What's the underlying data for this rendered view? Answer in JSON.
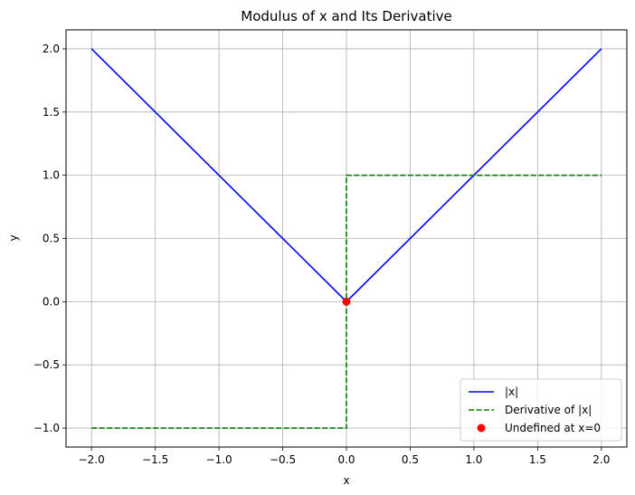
{
  "chart_data": {
    "type": "line",
    "title": "Modulus of x and Its Derivative",
    "xlabel": "x",
    "ylabel": "y",
    "xlim": [
      -2.2,
      2.2
    ],
    "ylim": [
      -1.15,
      2.15
    ],
    "x_ticks": [
      -2.0,
      -1.5,
      -1.0,
      -0.5,
      0.0,
      0.5,
      1.0,
      1.5,
      2.0
    ],
    "x_tick_labels": [
      "−2.0",
      "−1.5",
      "−1.0",
      "−0.5",
      "0.0",
      "0.5",
      "1.0",
      "1.5",
      "2.0"
    ],
    "y_ticks": [
      -1.0,
      -0.5,
      0.0,
      0.5,
      1.0,
      1.5,
      2.0
    ],
    "y_tick_labels": [
      "−1.0",
      "−0.5",
      "0.0",
      "0.5",
      "1.0",
      "1.5",
      "2.0"
    ],
    "grid": true,
    "legend_position": "lower-right",
    "series": [
      {
        "name": "|x|",
        "color": "#0000ff",
        "style": "solid",
        "marker": "none",
        "x": [
          -2.0,
          0.0,
          2.0
        ],
        "y": [
          2.0,
          0.0,
          2.0
        ]
      },
      {
        "name": "Derivative of |x|",
        "color": "#008000",
        "style": "dashed",
        "marker": "none",
        "x": [
          -2.0,
          0.0,
          0.0,
          2.0
        ],
        "y": [
          -1.0,
          -1.0,
          1.0,
          1.0
        ]
      },
      {
        "name": "Undefined at x=0",
        "color": "#ff0000",
        "style": "none",
        "marker": "circle",
        "x": [
          0.0
        ],
        "y": [
          0.0
        ]
      }
    ]
  }
}
